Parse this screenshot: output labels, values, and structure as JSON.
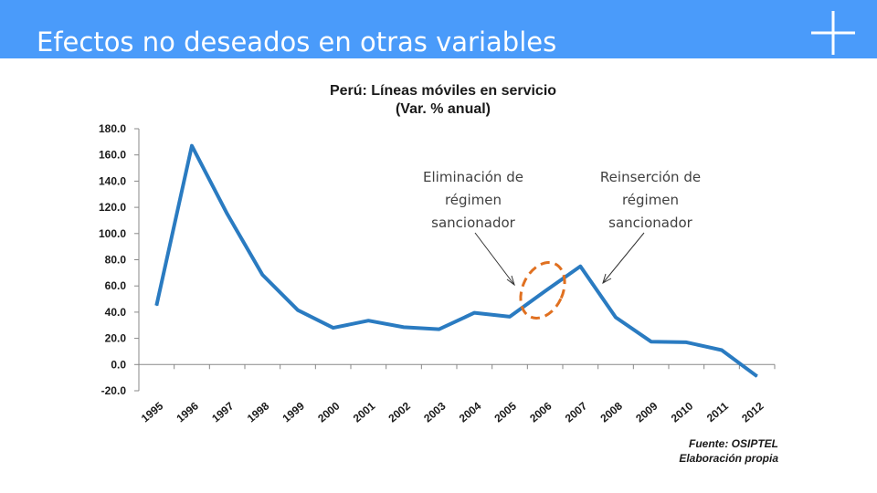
{
  "slide": {
    "title": "Efectos no deseados en otras variables",
    "header_color": "#4a9bfa",
    "corner_icon": "plus-icon"
  },
  "chart_data": {
    "type": "line",
    "title": "Perú: Líneas móviles en servicio",
    "subtitle": "(Var. % anual)",
    "categories": [
      "1995",
      "1996",
      "1997",
      "1998",
      "1999",
      "2000",
      "2001",
      "2002",
      "2003",
      "2004",
      "2005",
      "2006",
      "2007",
      "2008",
      "2009",
      "2010",
      "2011",
      "2012"
    ],
    "series": [
      {
        "values": [
          45.0,
          167.0,
          115.0,
          68.5,
          41.5,
          28.0,
          33.5,
          28.5,
          27.0,
          39.5,
          36.5,
          56.0,
          75.0,
          36.0,
          17.5,
          17.0,
          11.0,
          -9.0
        ],
        "color": "#2a7bc1"
      }
    ],
    "y_ticks": [
      "180.0",
      "160.0",
      "140.0",
      "120.0",
      "100.0",
      "80.0",
      "60.0",
      "40.0",
      "20.0",
      "0.0",
      "-20.0"
    ],
    "ylim": [
      -20,
      180
    ],
    "grid": false,
    "legend": "none",
    "annotations": [
      {
        "text": "Eliminación de\nrégimen\nsancionador"
      },
      {
        "text": "Reinserción de\nrégimen\nsancionador"
      }
    ],
    "highlight_color": "#e07020",
    "source_lines": [
      "Fuente: OSIPTEL",
      "Elaboración propia"
    ]
  }
}
